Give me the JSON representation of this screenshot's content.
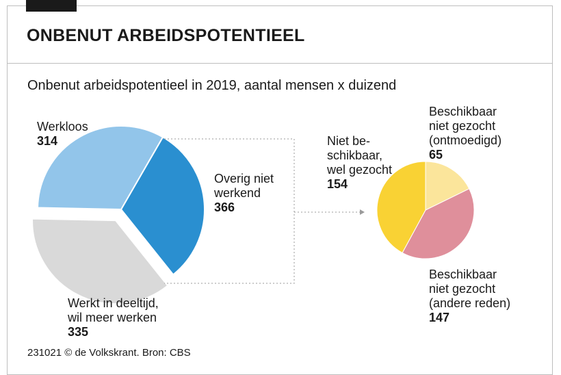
{
  "header": {
    "title": "ONBENUT ARBEIDSPOTENTIEEL",
    "subtitle": "Onbenut arbeidspotentieel in 2019, aantal mensen x duizend"
  },
  "source": "231021 © de Volkskrant. Bron: CBS",
  "labels": {
    "werkloos": {
      "name": "Werkloos",
      "value": "314"
    },
    "deeltijd": {
      "line1": "Werkt in deeltijd,",
      "line2": "wil meer werken",
      "value": "335"
    },
    "overig": {
      "line1": "Overig niet",
      "line2": "werkend",
      "value": "366"
    },
    "niet_beschikbaar": {
      "line1": "Niet be-",
      "line2": "schikbaar,",
      "line3": "wel gezocht",
      "value": "154"
    },
    "ontmoedigd": {
      "line1": "Beschikbaar",
      "line2": "niet gezocht",
      "line3": "(ontmoedigd)",
      "value": "65"
    },
    "andere_reden": {
      "line1": "Beschikbaar",
      "line2": "niet gezocht",
      "line3": "(andere reden)",
      "value": "147"
    }
  },
  "chart_data": [
    {
      "type": "pie",
      "title": "Onbenut arbeidspotentieel in 2019, aantal mensen x duizend",
      "unit": "x 1000",
      "slices": [
        {
          "name": "Werkloos",
          "value": 314,
          "color": "#2a8fd0"
        },
        {
          "name": "Overig niet werkend",
          "value": 366,
          "color": "#d9d9d9"
        },
        {
          "name": "Werkt in deeltijd, wil meer werken",
          "value": 335,
          "color": "#92c5ea"
        }
      ]
    },
    {
      "type": "pie",
      "title": "Overig niet werkend (366)",
      "unit": "x 1000",
      "slices": [
        {
          "name": "Beschikbaar niet gezocht (ontmoedigd)",
          "value": 65,
          "color": "#fbe59b"
        },
        {
          "name": "Beschikbaar niet gezocht (andere reden)",
          "value": 147,
          "color": "#df8f9b"
        },
        {
          "name": "Niet beschikbaar, wel gezocht",
          "value": 154,
          "color": "#f9d234"
        }
      ]
    }
  ]
}
